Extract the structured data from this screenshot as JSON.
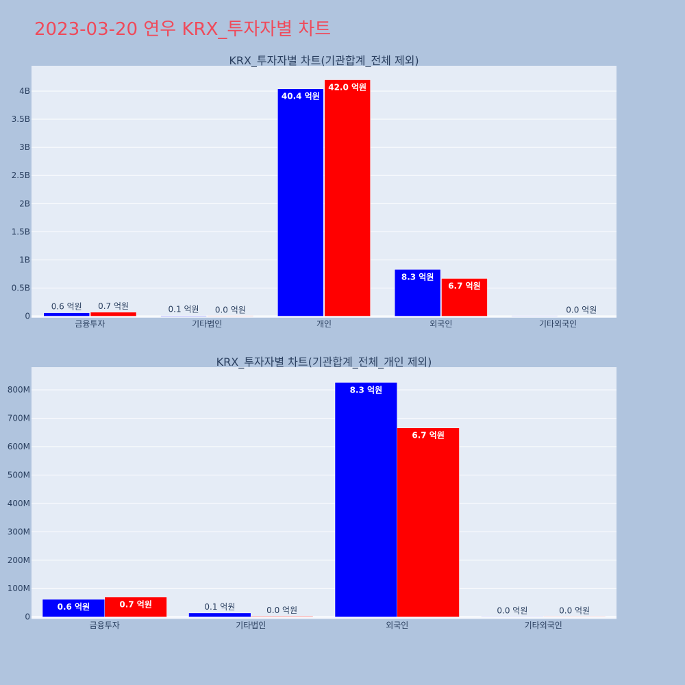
{
  "page": {
    "title": "2023-03-20 연우 KRX_투자자별 차트"
  },
  "colors": {
    "series1": "#0000ff",
    "series2": "#ff0000",
    "title": "#ef4a5a",
    "background": "#b0c4de",
    "plot_background": "#e5ecf6"
  },
  "chart_data": [
    {
      "type": "bar",
      "title": "KRX_투자자별 차트(기관합계_전체 제외)",
      "categories": [
        "금융투자",
        "기타법인",
        "개인",
        "외국인",
        "기타외국인"
      ],
      "yticks": [
        {
          "value": 0,
          "label": "0"
        },
        {
          "value": 500000000,
          "label": "0.5B"
        },
        {
          "value": 1000000000,
          "label": "1B"
        },
        {
          "value": 1500000000,
          "label": "1.5B"
        },
        {
          "value": 2000000000,
          "label": "2B"
        },
        {
          "value": 2500000000,
          "label": "2.5B"
        },
        {
          "value": 3000000000,
          "label": "3B"
        },
        {
          "value": 3500000000,
          "label": "3.5B"
        },
        {
          "value": 4000000000,
          "label": "4B"
        }
      ],
      "ylim": [
        -30000000,
        4450000000
      ],
      "grid": true,
      "series": [
        {
          "color": "#0000ff",
          "values": [
            60000000,
            10000000,
            4040000000,
            830000000,
            0
          ],
          "labels": [
            "0.6 억원",
            "0.1 억원",
            "40.4 억원",
            "8.3 억원",
            null
          ]
        },
        {
          "color": "#ff0000",
          "values": [
            70000000,
            2000000,
            4200000000,
            670000000,
            null
          ],
          "labels": [
            "0.7 억원",
            "0.0 억원",
            "42.0 억원",
            "6.7 억원",
            "0.0 억원"
          ]
        }
      ]
    },
    {
      "type": "bar",
      "title": "KRX_투자자별 차트(기관합계_전체_개인 제외)",
      "categories": [
        "금융투자",
        "기타법인",
        "외국인",
        "기타외국인"
      ],
      "yticks": [
        {
          "value": 0,
          "label": "0"
        },
        {
          "value": 100000000,
          "label": "100M"
        },
        {
          "value": 200000000,
          "label": "200M"
        },
        {
          "value": 300000000,
          "label": "300M"
        },
        {
          "value": 400000000,
          "label": "400M"
        },
        {
          "value": 500000000,
          "label": "500M"
        },
        {
          "value": 600000000,
          "label": "600M"
        },
        {
          "value": 700000000,
          "label": "700M"
        },
        {
          "value": 800000000,
          "label": "800M"
        }
      ],
      "ylim": [
        -8000000,
        880000000
      ],
      "grid": true,
      "series": [
        {
          "color": "#0000ff",
          "values": [
            62000000,
            14000000,
            826000000,
            1000000
          ],
          "labels": [
            "0.6 억원",
            "0.1 억원",
            "8.3 억원",
            "0.0 억원"
          ]
        },
        {
          "color": "#ff0000",
          "values": [
            70000000,
            2000000,
            666000000,
            1000000
          ],
          "labels": [
            "0.7 억원",
            "0.0 억원",
            "6.7 억원",
            "0.0 억원"
          ]
        }
      ]
    }
  ]
}
